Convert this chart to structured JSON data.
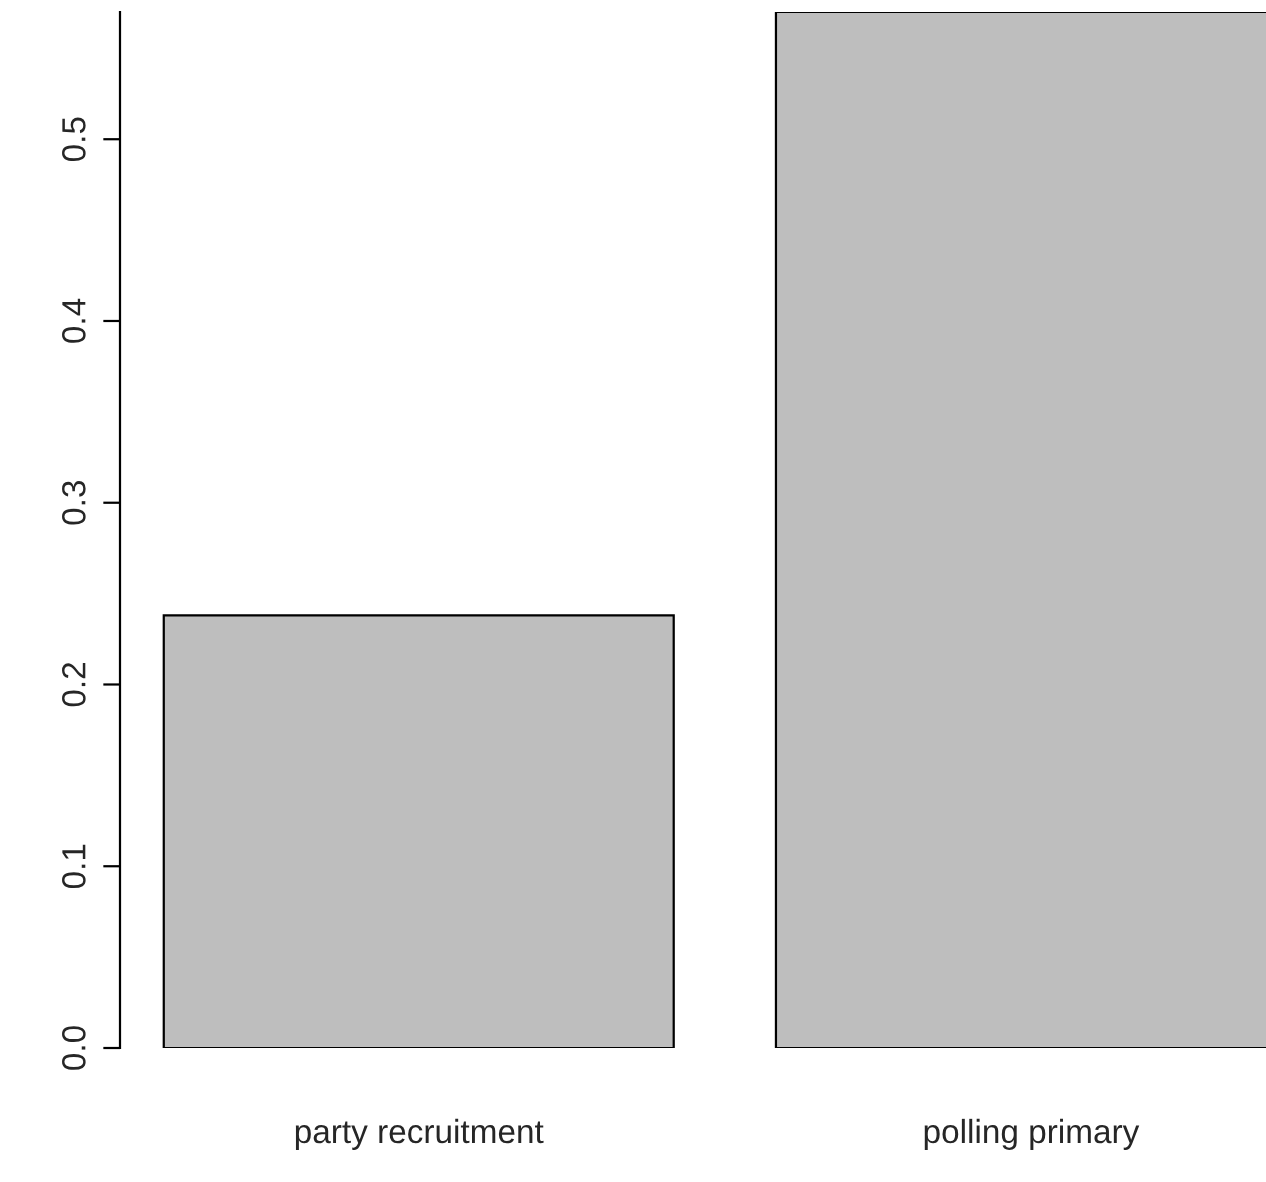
{
  "chart_data": {
    "type": "bar",
    "categories": [
      "party recruitment",
      "polling primary"
    ],
    "values": [
      0.238,
      0.57
    ],
    "color": "#bebebe",
    "ylim": [
      0,
      0.57
    ],
    "yticks": [
      {
        "value": 0,
        "label": "0.0"
      },
      {
        "value": 0.1,
        "label": "0.1"
      },
      {
        "value": 0.2,
        "label": "0.2"
      },
      {
        "value": 0.3,
        "label": "0.3"
      },
      {
        "value": 0.4,
        "label": "0.4"
      },
      {
        "value": 0.5,
        "label": "0.5"
      }
    ],
    "grid": false
  }
}
